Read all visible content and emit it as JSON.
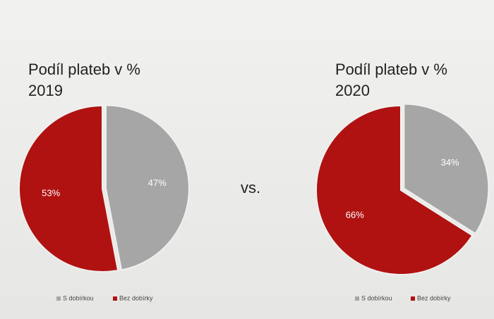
{
  "chart_data": [
    {
      "type": "pie",
      "title": "Podíl plateb v %",
      "subtitle": "2019",
      "categories": [
        "S dobírkou",
        "Bez dobírky"
      ],
      "values": [
        47,
        53
      ],
      "value_labels": [
        "47%",
        "53%"
      ],
      "colors": [
        "#a6a6a6",
        "#b01212"
      ],
      "legend": "bottom"
    },
    {
      "type": "pie",
      "title": "Podíl plateb v %",
      "subtitle": "2020",
      "categories": [
        "S dobírkou",
        "Bez dobírky"
      ],
      "values": [
        34,
        66
      ],
      "value_labels": [
        "34%",
        "66%"
      ],
      "colors": [
        "#a6a6a6",
        "#b01212"
      ],
      "legend": "bottom"
    }
  ],
  "annotation": "vs."
}
